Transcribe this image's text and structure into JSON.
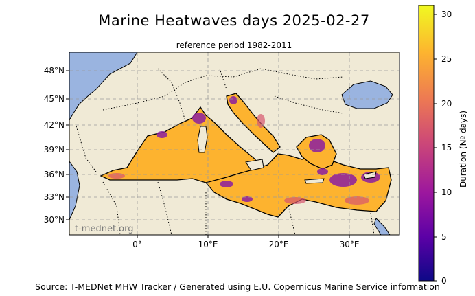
{
  "title": "Marine Heatwaves days 2025-02-27",
  "subtitle": "reference period 1982-2011",
  "map": {
    "lat_ticks": [
      "48°N",
      "45°N",
      "42°N",
      "39°N",
      "36°N",
      "33°N",
      "30°N"
    ],
    "lon_ticks": [
      "0°",
      "10°E",
      "20°E",
      "30°E"
    ],
    "watermark": "t-mednet.org",
    "land_color": "#f0ead6",
    "ocean_color": "#9ab4e0",
    "sea_fill_color": "#fdb32f"
  },
  "colorbar": {
    "label": "Duration (Nº days)",
    "ticks": [
      "30",
      "25",
      "20",
      "15",
      "10",
      "5",
      "0"
    ],
    "min": 0,
    "max": 31,
    "colormap": "plasma",
    "stops": [
      "#0d0887",
      "#5c01a6",
      "#9c179e",
      "#cc4778",
      "#ed7953",
      "#fdb42f",
      "#f0f921"
    ]
  },
  "source": "Source: T-MEDNet MHW Tracker / Generated using E.U. Copernicus Marine Service information"
}
